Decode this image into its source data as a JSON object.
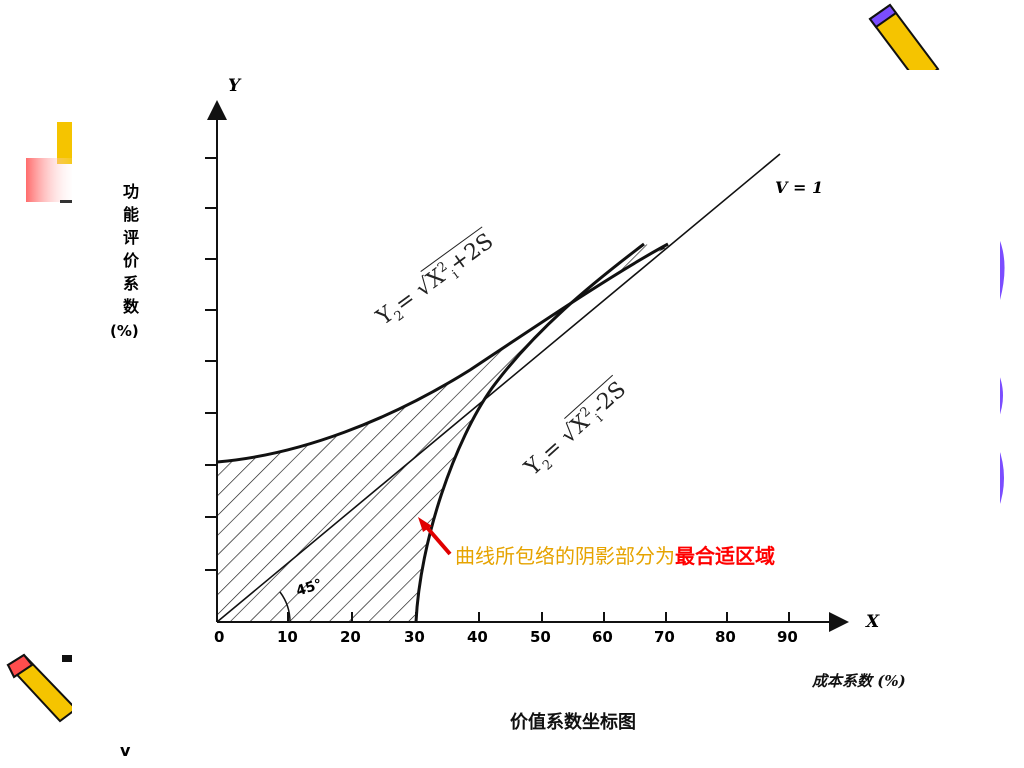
{
  "diagram": {
    "y_axis_letter": "Y",
    "x_axis_letter": "X",
    "y_axis_title_chars": [
      "功",
      "能",
      "评",
      "价",
      "系",
      "数"
    ],
    "y_axis_unit": "(%)",
    "x_ticks": [
      "0",
      "10",
      "20",
      "30",
      "40",
      "50",
      "60",
      "70",
      "80",
      "90"
    ],
    "x_axis_title": "成本系数 (%)",
    "caption": "价值系数坐标图",
    "angle_label": "45°",
    "line_label": "V = 1",
    "upper_curve_eq": {
      "lhs": "Y",
      "sub": "2",
      "mid": "= √",
      "x": "X",
      "sup": "2",
      "isub": "i",
      "rest": "+2S"
    },
    "lower_curve_eq": {
      "lhs": "Y",
      "sub": "2",
      "mid": "= √",
      "x": "X",
      "sup": "2",
      "isub": "i",
      "rest": "-2S"
    },
    "annotation": {
      "text": "曲线所包络的阴影部分为",
      "highlight": "最合适区域",
      "text_color": "#e6a300",
      "highlight_color": "#ff0000"
    },
    "colors": {
      "arrow": "#e00000",
      "line": "#000000",
      "deco_yellow": "#f5c400",
      "deco_red": "#ff4d4d",
      "deco_purple": "#7b4dff"
    }
  }
}
